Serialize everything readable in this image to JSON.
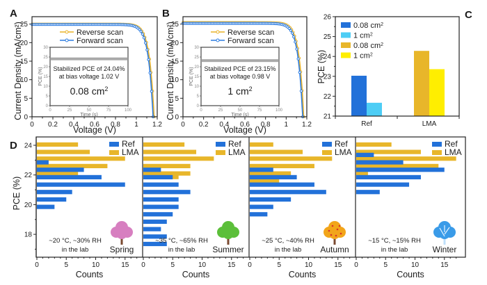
{
  "colors": {
    "ref_blue": "#2271d9",
    "ref_light_blue": "#4dcdf5",
    "lma_gold": "#e8b62a",
    "lma_yellow": "#ffee00",
    "reverse_scan": "#e9b227",
    "forward_scan": "#2b7be0",
    "inset_trace": "#9a9a9a"
  },
  "chart_data": [
    {
      "id": "A",
      "type": "line",
      "panel_label": "A",
      "xlabel": "Voltage (V)",
      "ylabel": "Current Density (mA/cm²)",
      "xlim": [
        0,
        1.2
      ],
      "ylim": [
        0,
        27
      ],
      "xticks": [
        "0",
        "0.2",
        "0.4",
        "0.6",
        "0.8",
        "1",
        "1.2"
      ],
      "xtick_values": [
        0,
        0.2,
        0.4,
        0.6,
        0.8,
        1.0,
        1.2
      ],
      "yticks": [
        "0",
        "5",
        "10",
        "15",
        "20",
        "25"
      ],
      "ytick_values": [
        0,
        5,
        10,
        15,
        20,
        25
      ],
      "legend": [
        "Reverse scan",
        "Forward scan"
      ],
      "legend_position": "top-center",
      "series": [
        {
          "name": "Reverse scan",
          "jsc": 25.0,
          "voc": 1.17,
          "knee": 0.96
        },
        {
          "name": "Forward scan",
          "jsc": 24.9,
          "voc": 1.16,
          "knee": 0.92
        }
      ],
      "inset": {
        "type": "line",
        "xlabel": "Time (s)",
        "ylabel": "PCE (%)",
        "xlim": [
          0,
          100
        ],
        "ylim": [
          0,
          30
        ],
        "xticks": [
          "0",
          "25",
          "50",
          "75",
          "100"
        ],
        "xtick_values": [
          0,
          25,
          50,
          75,
          100
        ],
        "yticks": [
          "0",
          "5",
          "10",
          "15",
          "20",
          "25",
          "30"
        ],
        "ytick_values": [
          0,
          5,
          10,
          15,
          20,
          25,
          30
        ],
        "value": 24.04,
        "annotation_line1": "Stabilized PCE of 24.04%",
        "annotation_line2": "at bias voltage 1.02 V",
        "area_label": "0.08 cm",
        "area_sup": "2"
      }
    },
    {
      "id": "B",
      "type": "line",
      "panel_label": "B",
      "xlabel": "Voltage (V)",
      "ylabel": "Current Density (mA/cm²)",
      "xlim": [
        0,
        1.2
      ],
      "ylim": [
        0,
        27
      ],
      "xticks": [
        "0",
        "0.2",
        "0.4",
        "0.6",
        "0.8",
        "1",
        "1.2"
      ],
      "xtick_values": [
        0,
        0.2,
        0.4,
        0.6,
        0.8,
        1.0,
        1.2
      ],
      "yticks": [
        "0",
        "5",
        "10",
        "15",
        "20",
        "25"
      ],
      "ytick_values": [
        0,
        5,
        10,
        15,
        20,
        25
      ],
      "legend": [
        "Reverse scan",
        "Forward scan"
      ],
      "legend_position": "top-center",
      "series": [
        {
          "name": "Reverse scan",
          "jsc": 25.4,
          "voc": 1.17,
          "knee": 0.95
        },
        {
          "name": "Forward scan",
          "jsc": 25.2,
          "voc": 1.16,
          "knee": 0.92
        }
      ],
      "inset": {
        "type": "line",
        "xlabel": "Time (s)",
        "ylabel": "PCE (%)",
        "xlim": [
          0,
          100
        ],
        "ylim": [
          0,
          30
        ],
        "xticks": [
          "0",
          "25",
          "50",
          "75",
          "100"
        ],
        "xtick_values": [
          0,
          25,
          50,
          75,
          100
        ],
        "yticks": [
          "0",
          "5",
          "10",
          "15",
          "20",
          "25",
          "30"
        ],
        "ytick_values": [
          0,
          5,
          10,
          15,
          20,
          25,
          30
        ],
        "value": 23.15,
        "annotation_line1": "Stabilized PCE of 23.15%",
        "annotation_line2": "at bias voltage 0.98 V",
        "area_label": "1 cm",
        "area_sup": "2"
      }
    },
    {
      "id": "C",
      "type": "bar",
      "panel_label": "C",
      "ylabel": "PCE (%)",
      "xlabel": "",
      "categories": [
        "Ref",
        "LMA"
      ],
      "ylim": [
        21,
        26
      ],
      "yticks": [
        "21",
        "22",
        "23",
        "24",
        "25",
        "26"
      ],
      "ytick_values": [
        21,
        22,
        23,
        24,
        25,
        26
      ],
      "legend_position": "top-left",
      "series": [
        {
          "name": "0.08 cm",
          "sup": "2",
          "group": "Ref",
          "value": 23.03,
          "color": "#2271d9"
        },
        {
          "name": "1 cm",
          "sup": "2",
          "group": "Ref",
          "value": 21.67,
          "color": "#4dcdf5"
        },
        {
          "name": "0.08 cm",
          "sup": "2",
          "group": "LMA",
          "value": 24.28,
          "color": "#e8b62a"
        },
        {
          "name": "1 cm",
          "sup": "2",
          "group": "LMA",
          "value": 23.36,
          "color": "#ffee00"
        }
      ]
    },
    {
      "id": "D",
      "type": "bar",
      "orientation": "horizontal",
      "panel_label": "D",
      "ylabel": "PCE (%)",
      "xlabel": "Counts",
      "ylim": [
        16.9,
        24.5
      ],
      "yticks": [
        "18",
        "20",
        "22",
        "24"
      ],
      "ytick_values": [
        18,
        20,
        22,
        24
      ],
      "xlim": [
        0,
        18
      ],
      "xticks": [
        "0",
        "5",
        "10",
        "15"
      ],
      "xtick_values": [
        0,
        5,
        10,
        15
      ],
      "legend": [
        "Ref",
        "LMA"
      ],
      "legend_position": "top-right",
      "subpanels": [
        {
          "season": "Spring",
          "condition": "~20 °C, ~30% RH",
          "place": "in the lab",
          "tree_color": "#d77fc0",
          "ref": {
            "pce": [
              22.85,
              22.35,
              21.85,
              21.35,
              20.85,
              20.35,
              19.85
            ],
            "counts": [
              2,
              8,
              11,
              15,
              6,
              5,
              3
            ]
          },
          "lma": {
            "pce": [
              24.05,
              23.55,
              23.1,
              22.6,
              22.1
            ],
            "counts": [
              7,
              9,
              15,
              12,
              7
            ]
          }
        },
        {
          "season": "Summer",
          "condition": "~35 °C, ~65% RH",
          "place": "in the lab",
          "tree_color": "#5cbf3a",
          "ref": {
            "pce": [
              22.35,
              21.85,
              21.35,
              20.85,
              20.35,
              19.85,
              19.35,
              18.85,
              18.35,
              17.85,
              17.35
            ],
            "counts": [
              3,
              5,
              6,
              8,
              6,
              6,
              5,
              4,
              3,
              4,
              4
            ]
          },
          "lma": {
            "pce": [
              24.05,
              23.55,
              23.1,
              22.6,
              22.1
            ],
            "counts": [
              7,
              9,
              12,
              8,
              8
            ]
          },
          "lma_extra": {
            "pce": [
              22.1
            ],
            "counts": [
              6
            ]
          }
        },
        {
          "season": "Autumn",
          "condition": "~25 °C, ~40% RH",
          "place": "in the lab",
          "tree_color": "#f2a51a",
          "ref": {
            "pce": [
              22.35,
              21.85,
              21.35,
              20.85,
              20.35,
              19.85,
              19.35
            ],
            "counts": [
              4,
              8,
              11,
              13,
              7,
              4,
              3
            ]
          },
          "lma": {
            "pce": [
              24.05,
              23.55,
              23.1,
              22.6,
              22.1,
              21.6
            ],
            "counts": [
              4,
              9,
              14,
              11,
              7,
              5
            ]
          }
        },
        {
          "season": "Winter",
          "condition": "~15 °C, ~15% RH",
          "place": "in the lab",
          "tree_color": "#3a9be8",
          "ref": {
            "pce": [
              23.35,
              22.85,
              22.35,
              21.85,
              21.35,
              20.85
            ],
            "counts": [
              3,
              8,
              15,
              11,
              9,
              4
            ]
          },
          "lma": {
            "pce": [
              24.05,
              23.55,
              23.1,
              22.6,
              22.1
            ],
            "counts": [
              6,
              11,
              17,
              14,
              2
            ]
          }
        }
      ]
    }
  ]
}
